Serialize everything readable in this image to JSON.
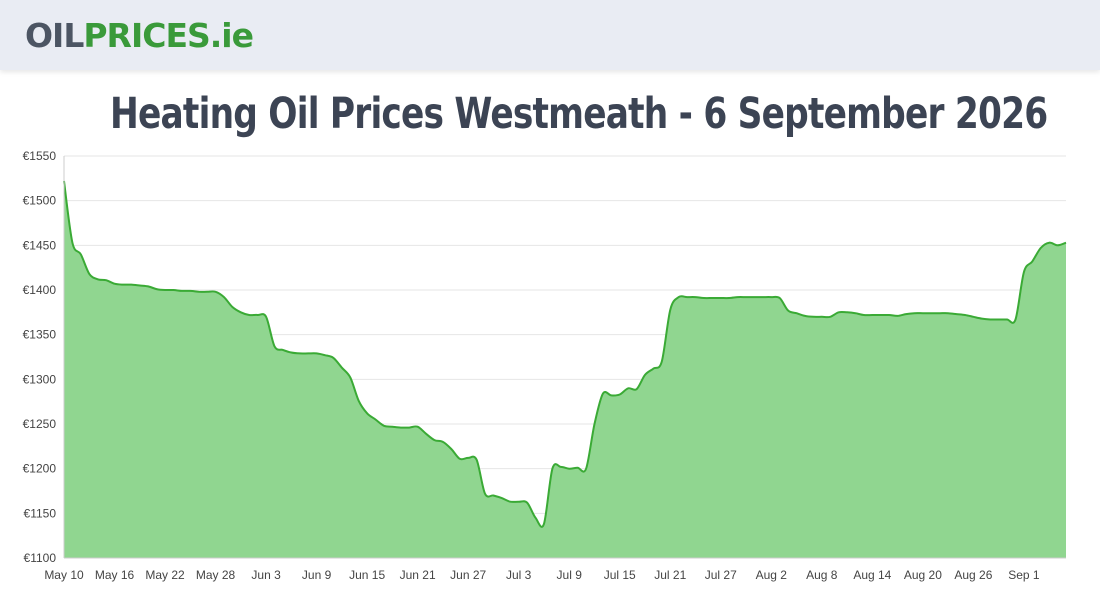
{
  "header": {
    "logo_part1": "OIL",
    "logo_part2": "PRICES.ie",
    "logo_color_dark": "#4c5563",
    "logo_color_green": "#3a9a3a",
    "title": "Heating Oil Prices Westmeath - 6 September 2026"
  },
  "chart_data": {
    "type": "area",
    "title": "Heating Oil Prices Westmeath - 6 September 2026",
    "xlabel": "",
    "ylabel": "",
    "ylim": [
      1100,
      1550
    ],
    "yticks": [
      "€1100",
      "€1150",
      "€1200",
      "€1250",
      "€1300",
      "€1350",
      "€1400",
      "€1450",
      "€1500",
      "€1550"
    ],
    "xticks": [
      "May 10",
      "May 16",
      "May 22",
      "May 28",
      "Jun 3",
      "Jun 9",
      "Jun 15",
      "Jun 21",
      "Jun 27",
      "Jul 3",
      "Jul 9",
      "Jul 15",
      "Jul 21",
      "Jul 27",
      "Aug 2",
      "Aug 8",
      "Aug 14",
      "Aug 20",
      "Aug 26",
      "Sep 1"
    ],
    "grid": true,
    "legend": "none",
    "line_color": "#3aaa35",
    "fill_color": "#90d690",
    "series": [
      {
        "x": [
          "May 10",
          "May 11",
          "May 12",
          "May 13",
          "May 14",
          "May 15",
          "May 16",
          "May 17",
          "May 18",
          "May 19",
          "May 20",
          "May 21",
          "May 22",
          "May 23",
          "May 24",
          "May 25",
          "May 26",
          "May 27",
          "May 28",
          "May 29",
          "May 30",
          "May 31",
          "Jun 1",
          "Jun 2",
          "Jun 3",
          "Jun 4",
          "Jun 5",
          "Jun 6",
          "Jun 7",
          "Jun 8",
          "Jun 9",
          "Jun 10",
          "Jun 11",
          "Jun 12",
          "Jun 13",
          "Jun 14",
          "Jun 15",
          "Jun 16",
          "Jun 17",
          "Jun 18",
          "Jun 19",
          "Jun 20",
          "Jun 21",
          "Jun 22",
          "Jun 23",
          "Jun 24",
          "Jun 25",
          "Jun 26",
          "Jun 27",
          "Jun 28",
          "Jun 29",
          "Jun 30",
          "Jul 1",
          "Jul 2",
          "Jul 3",
          "Jul 4",
          "Jul 5",
          "Jul 6",
          "Jul 7",
          "Jul 8",
          "Jul 9",
          "Jul 10",
          "Jul 11",
          "Jul 12",
          "Jul 13",
          "Jul 14",
          "Jul 15",
          "Jul 16",
          "Jul 17",
          "Jul 18",
          "Jul 19",
          "Jul 20",
          "Jul 21",
          "Jul 22",
          "Jul 23",
          "Jul 24",
          "Jul 25",
          "Jul 26",
          "Jul 27",
          "Jul 28",
          "Jul 29",
          "Jul 30",
          "Jul 31",
          "Aug 1",
          "Aug 2",
          "Aug 3",
          "Aug 4",
          "Aug 5",
          "Aug 6",
          "Aug 7",
          "Aug 8",
          "Aug 9",
          "Aug 10",
          "Aug 11",
          "Aug 12",
          "Aug 13",
          "Aug 14",
          "Aug 15",
          "Aug 16",
          "Aug 17",
          "Aug 18",
          "Aug 19",
          "Aug 20",
          "Aug 21",
          "Aug 22",
          "Aug 23",
          "Aug 24",
          "Aug 25",
          "Aug 26",
          "Aug 27",
          "Aug 28",
          "Aug 29",
          "Aug 30",
          "Aug 31",
          "Sep 1",
          "Sep 2",
          "Sep 3",
          "Sep 4",
          "Sep 5",
          "Sep 6"
        ],
        "values": [
          1522,
          1453,
          1440,
          1418,
          1412,
          1411,
          1407,
          1406,
          1406,
          1405,
          1404,
          1401,
          1400,
          1400,
          1399,
          1399,
          1398,
          1398,
          1398,
          1392,
          1381,
          1375,
          1372,
          1372,
          1370,
          1337,
          1333,
          1330,
          1329,
          1329,
          1329,
          1327,
          1324,
          1313,
          1302,
          1276,
          1262,
          1255,
          1248,
          1247,
          1246,
          1246,
          1247,
          1239,
          1232,
          1230,
          1222,
          1211,
          1212,
          1210,
          1172,
          1170,
          1167,
          1163,
          1163,
          1162,
          1145,
          1138,
          1200,
          1202,
          1200,
          1201,
          1200,
          1250,
          1284,
          1282,
          1283,
          1290,
          1289,
          1305,
          1312,
          1320,
          1378,
          1392,
          1392,
          1392,
          1391,
          1391,
          1391,
          1391,
          1392,
          1392,
          1392,
          1392,
          1392,
          1391,
          1377,
          1374,
          1371,
          1370,
          1370,
          1370,
          1375,
          1375,
          1374,
          1372,
          1372,
          1372,
          1372,
          1371,
          1373,
          1374,
          1374,
          1374,
          1374,
          1374,
          1373,
          1372,
          1370,
          1368,
          1367,
          1367,
          1367,
          1367,
          1420,
          1432,
          1447,
          1453,
          1450,
          1453
        ]
      }
    ]
  }
}
